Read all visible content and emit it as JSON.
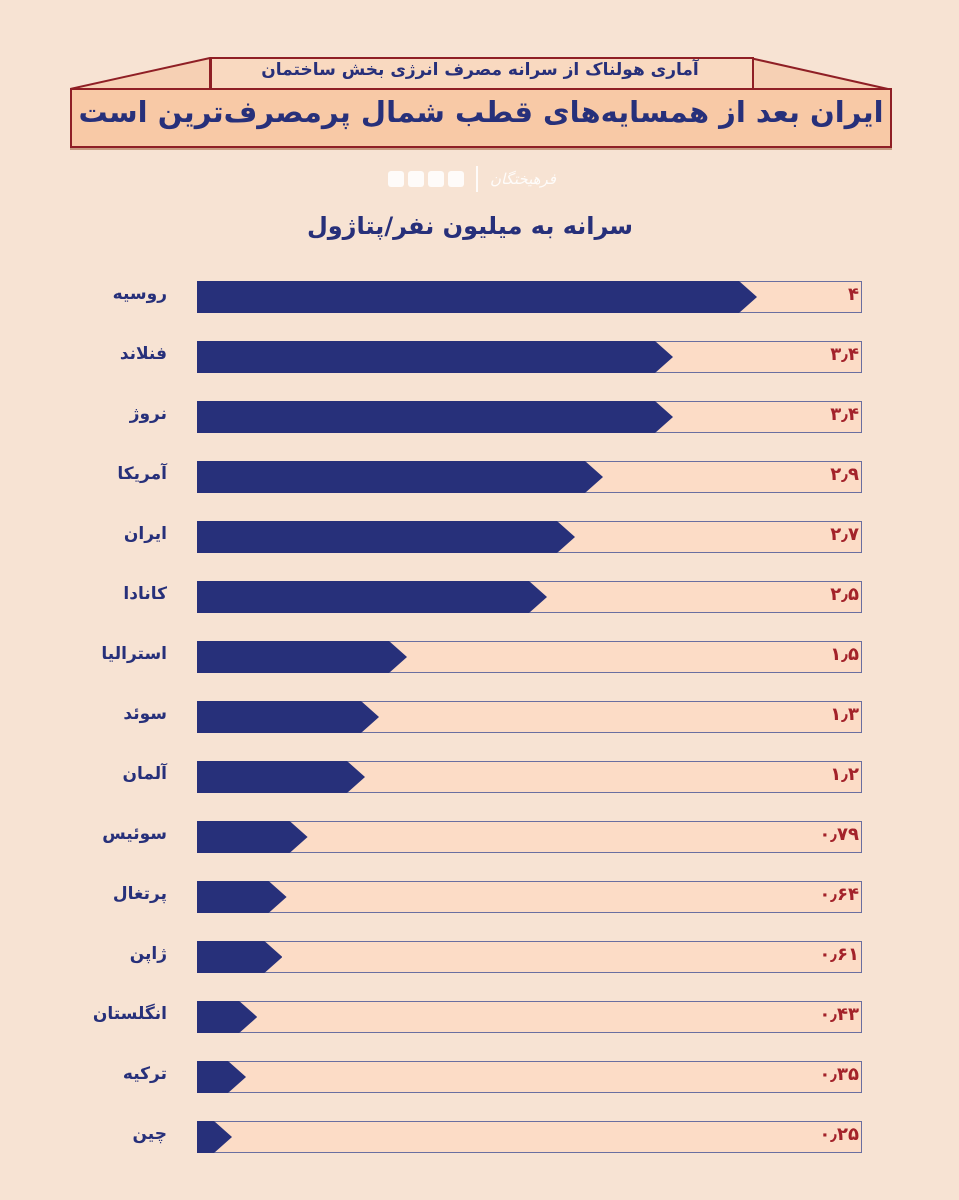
{
  "header": {
    "subtitle": "آماری هولناک از سرانه مصرف انرژی بخش ساختمان",
    "title": "ایران بعد از همسایه‌های قطب شمال پرمصرف‌ترین است",
    "brand_logo": "فرهیختگان"
  },
  "chart_data": {
    "type": "bar",
    "orientation": "horizontal",
    "title": "سرانه به میلیون نفر/پتاژول",
    "categories": [
      "روسیه",
      "فنلاند",
      "نروژ",
      "آمریکا",
      "ایران",
      "کانادا",
      "استرالیا",
      "سوئد",
      "آلمان",
      "سوئیس",
      "پرتغال",
      "ژاپن",
      "انگلستان",
      "ترکیه",
      "چین"
    ],
    "values": [
      4,
      3.4,
      3.4,
      2.9,
      2.7,
      2.5,
      1.5,
      1.3,
      1.2,
      0.79,
      0.64,
      0.61,
      0.43,
      0.35,
      0.25
    ],
    "value_labels": [
      "۴",
      "۳٫۴",
      "۳٫۴",
      "۲٫۹",
      "۲٫۷",
      "۲٫۵",
      "۱٫۵",
      "۱٫۳",
      "۱٫۲",
      "۰٫۷۹",
      "۰٫۶۴",
      "۰٫۶۱",
      "۰٫۴۳",
      "۰٫۳۵",
      "۰٫۲۵"
    ],
    "xlim": [
      0,
      4.75
    ],
    "grid": false,
    "colors": {
      "bar": "#27307a",
      "track": "#fcdcc6",
      "value_text": "#a3222a",
      "background": "#f7e3d3"
    }
  }
}
